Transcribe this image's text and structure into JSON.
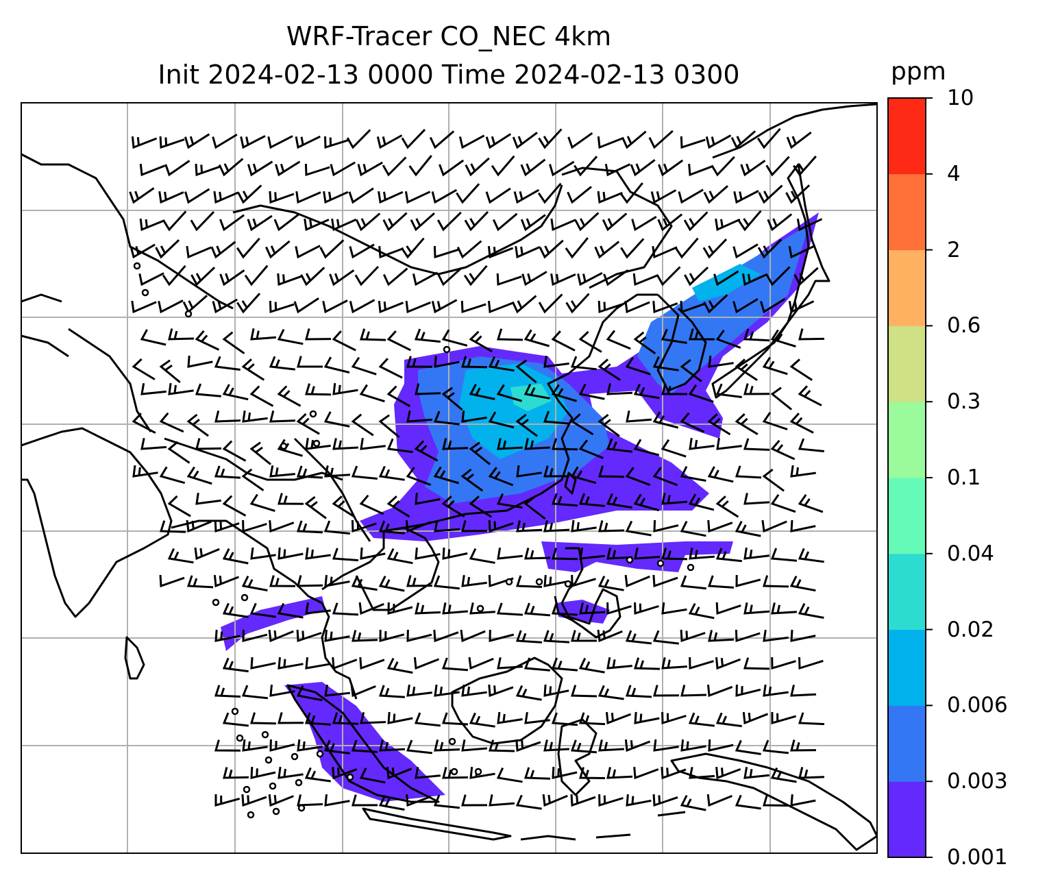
{
  "title": {
    "line1": "WRF-Tracer CO_NEC 4km",
    "line2": "Init 2024-02-13 0000 Time 2024-02-13 0300"
  },
  "colorbar": {
    "unit": "ppm",
    "levels": [
      "0.001",
      "0.003",
      "0.006",
      "0.02",
      "0.04",
      "0.1",
      "0.3",
      "0.6",
      "2",
      "4",
      "10"
    ],
    "colors": [
      "#6429fc",
      "#3377f4",
      "#02b2ed",
      "#2ddcd1",
      "#66fab8",
      "#9bfa9b",
      "#cee185",
      "#ffb162",
      "#ff7138",
      "#ff2a15"
    ]
  },
  "map": {
    "gridlines": "on",
    "overlays": [
      "coastlines",
      "country-borders",
      "wind-barbs",
      "tracer-concentration-fill"
    ],
    "barb_color": "#000000",
    "border_color": "#000000",
    "grid_color": "#b0b0b0"
  }
}
